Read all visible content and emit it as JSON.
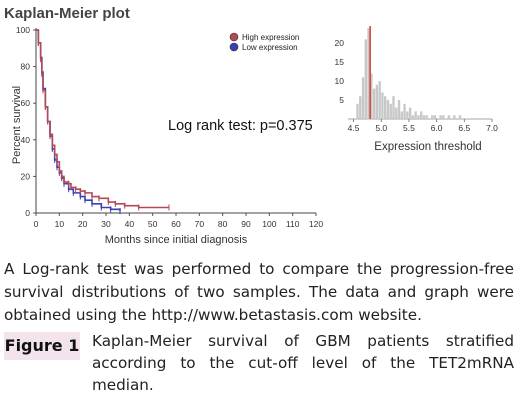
{
  "chart_data": [
    {
      "type": "line",
      "title": "Kaplan-Meier plot",
      "xlabel": "Months since initial diagnosis",
      "ylabel": "Percent survival",
      "xlim": [
        0,
        120
      ],
      "ylim": [
        0,
        100
      ],
      "xticks": [
        0,
        10,
        20,
        30,
        40,
        50,
        60,
        70,
        80,
        90,
        100,
        110,
        120
      ],
      "yticks": [
        0,
        20,
        40,
        60,
        80,
        100
      ],
      "annotation": "Log rank test: p=0.375",
      "legend_position": "top-right",
      "series": [
        {
          "name": "High expression",
          "color": "#b24a55",
          "x": [
            0,
            1,
            2,
            2.5,
            3,
            4,
            5,
            6,
            7,
            8,
            9,
            10,
            11,
            12,
            14,
            15,
            17,
            19,
            21,
            24,
            27,
            31,
            34,
            38,
            44,
            57
          ],
          "y": [
            100,
            93,
            84,
            76,
            67,
            58,
            50,
            43,
            37,
            32,
            28,
            23,
            20,
            17,
            16,
            14,
            13,
            12,
            11,
            9,
            8,
            6,
            5,
            4,
            3,
            3
          ]
        },
        {
          "name": "Low expression",
          "color": "#3a3fb5",
          "x": [
            0,
            1,
            2,
            2.5,
            3,
            4,
            5,
            6,
            7,
            8,
            9,
            10,
            11,
            12,
            14,
            16,
            19,
            21,
            24,
            28,
            32,
            36
          ],
          "y": [
            100,
            93,
            85,
            77,
            68,
            58,
            50,
            42,
            35,
            29,
            25,
            22,
            19,
            16,
            13,
            11,
            9,
            7,
            5,
            3,
            2,
            1
          ]
        }
      ]
    },
    {
      "type": "bar",
      "title": "",
      "xlabel": "Expression threshold",
      "ylabel": "",
      "xlim": [
        4.4,
        7.0
      ],
      "ylim": [
        0,
        24
      ],
      "xticks": [
        "4.5",
        "5.0",
        "5.5",
        "6.0",
        "6.5",
        "7.0"
      ],
      "yticks": [
        5,
        10,
        15,
        20
      ],
      "cutoff": 4.8,
      "bin_width": 0.05,
      "bins_start": [
        4.55,
        4.6,
        4.65,
        4.7,
        4.75,
        4.8,
        4.85,
        4.9,
        4.95,
        5.0,
        5.05,
        5.1,
        5.15,
        5.2,
        5.25,
        5.3,
        5.35,
        5.4,
        5.45,
        5.5,
        5.55,
        5.6,
        5.65,
        5.7,
        5.75,
        5.8,
        5.85,
        5.9,
        5.95,
        6.0,
        6.05,
        6.1,
        6.15,
        6.2,
        6.25,
        6.3,
        6.35,
        6.4
      ],
      "values": [
        4,
        6,
        11,
        21,
        24,
        12,
        8,
        9,
        10,
        7,
        6,
        5,
        4,
        6,
        3,
        5,
        2,
        4,
        2,
        3,
        1,
        2,
        1,
        2,
        1,
        1,
        0,
        1,
        1,
        0,
        1,
        1,
        0,
        1,
        0,
        1,
        0,
        1
      ],
      "bar_color": "#c8c8c8",
      "cutoff_color": "#d9463f"
    }
  ],
  "caption": "A Log-rank test was performed to compare the progression-free survival distributions of two samples. The data and graph were obtained using the http://www.betastasis.com website.",
  "figure_label": "Figure 1",
  "figure_caption": "Kaplan-Meier survival of GBM patients stratified according to the cut-off level of the TET2mRNA median."
}
